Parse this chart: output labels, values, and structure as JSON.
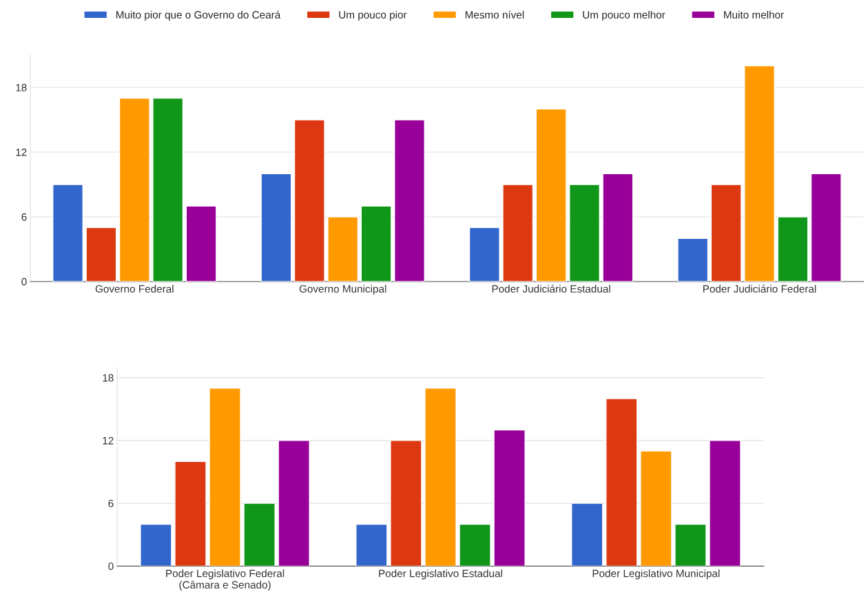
{
  "chart_data": [
    {
      "type": "bar",
      "categories": [
        "Governo Federal",
        "Governo Municipal",
        "Poder Judiciário Estadual",
        "Poder Judiciário Federal"
      ],
      "series": [
        {
          "name": "Muito pior que o Governo do Ceará",
          "color": "#3366cc",
          "values": [
            9,
            10,
            5,
            4
          ]
        },
        {
          "name": "Um pouco pior",
          "color": "#dc3912",
          "values": [
            5,
            15,
            9,
            9
          ]
        },
        {
          "name": "Mesmo nível",
          "color": "#ff9900",
          "values": [
            17,
            6,
            16,
            20
          ]
        },
        {
          "name": "Um pouco melhor",
          "color": "#109618",
          "values": [
            17,
            7,
            9,
            6
          ]
        },
        {
          "name": "Muito melhor",
          "color": "#990099",
          "values": [
            7,
            15,
            10,
            10
          ]
        }
      ],
      "ylim": [
        0,
        21
      ],
      "yticks": [
        0,
        6,
        12,
        18
      ],
      "grid": "y",
      "legend": "top"
    },
    {
      "type": "bar",
      "categories": [
        "Poder Legislativo Federal\n(Câmara e Senado)",
        "Poder Legislativo Estadual",
        "Poder Legislativo Municipal"
      ],
      "series": [
        {
          "color": "#3366cc",
          "values": [
            4,
            4,
            6
          ]
        },
        {
          "color": "#dc3912",
          "values": [
            10,
            12,
            16
          ]
        },
        {
          "color": "#ff9900",
          "values": [
            17,
            17,
            11
          ]
        },
        {
          "color": "#109618",
          "values": [
            6,
            4,
            4
          ]
        },
        {
          "color": "#990099",
          "values": [
            12,
            13,
            12
          ]
        }
      ],
      "ylim": [
        0,
        19
      ],
      "yticks": [
        0,
        6,
        12,
        18
      ],
      "grid": "y"
    }
  ]
}
